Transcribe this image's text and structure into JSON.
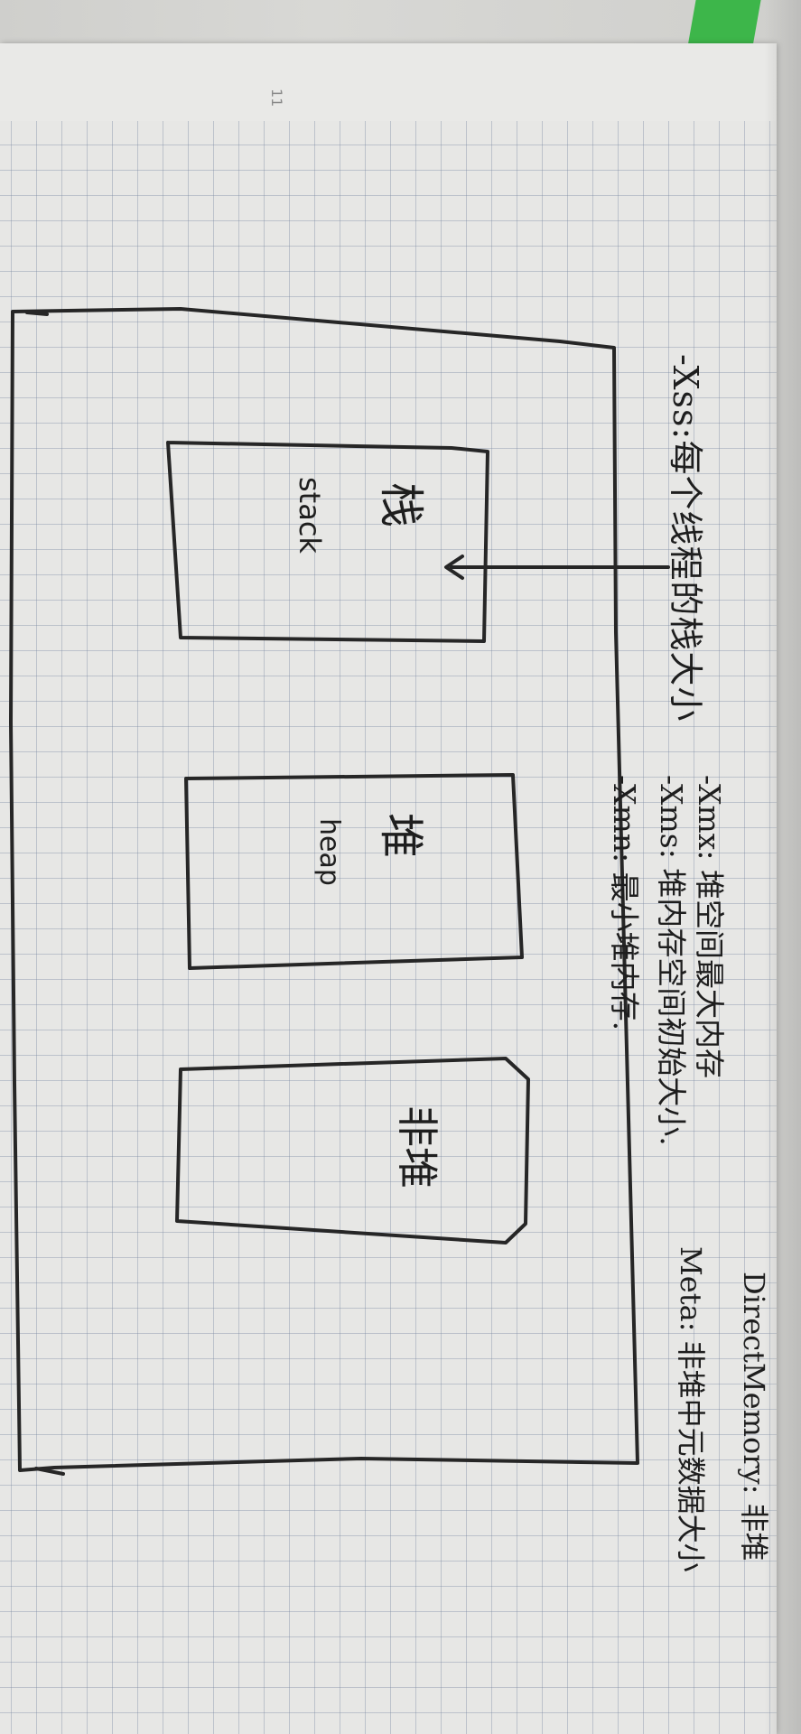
{
  "page_number": "11",
  "notes": {
    "xss": "-Xss:每个线程的栈大小",
    "xmx": "-Xmx: 堆空间最大内存",
    "xms": "-Xms: 堆内存空间初始大小.",
    "xmn": "-Xmn: 最小堆内存.",
    "direct_memory": "DirectMemory: 非堆",
    "meta": "Meta: 非堆中元数据大小"
  },
  "boxes": {
    "stack_cn": "栈",
    "stack_en": "stack",
    "heap_cn": "堆",
    "heap_en": "heap",
    "offheap_cn": "非堆"
  },
  "colors": {
    "paper": "#e7e7e5",
    "grid": "#7887a0",
    "ink": "#1e1e1e",
    "ribbon": "#3db64a"
  }
}
